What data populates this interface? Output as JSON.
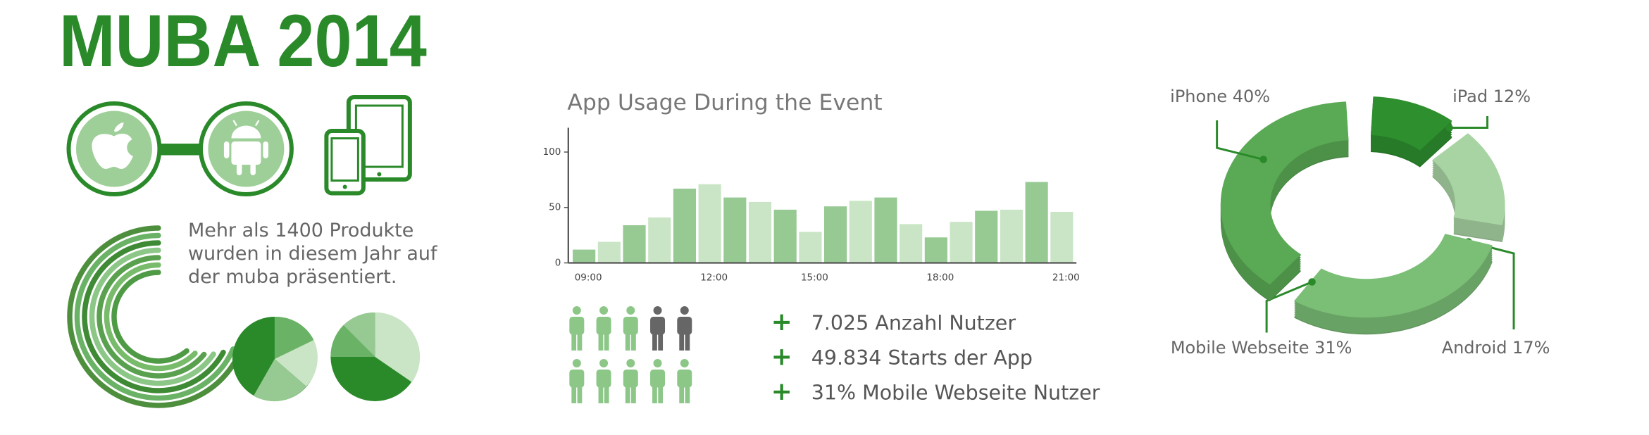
{
  "header": {
    "title": "MUBA 2014"
  },
  "intro": {
    "lines": [
      "Mehr als 1400 Produkte",
      "wurden in diesem Jahr auf",
      "der muba präsentiert."
    ]
  },
  "stats": [
    {
      "icon": "+",
      "text": "7.025 Anzahl Nutzer"
    },
    {
      "icon": "+",
      "text": "49.834 Starts der App"
    },
    {
      "icon": "+",
      "text": "31% Mobile Webseite Nutzer"
    }
  ],
  "chart_data": [
    {
      "type": "bar",
      "title": "App Usage During the Event",
      "categories": [
        "09:00",
        null,
        null,
        null,
        null,
        "12:00",
        null,
        null,
        null,
        "15:00",
        null,
        null,
        null,
        null,
        "18:00",
        null,
        null,
        null,
        null,
        "21:00"
      ],
      "values": [
        12,
        19,
        34,
        41,
        67,
        71,
        59,
        55,
        48,
        28,
        51,
        56,
        59,
        35,
        23,
        37,
        47,
        48,
        73,
        46
      ],
      "colors": [
        "#97c993",
        "#c9e5c5"
      ],
      "ylim": [
        0,
        120
      ],
      "yticks": [
        0,
        50,
        100
      ]
    },
    {
      "type": "donut",
      "values": [
        12,
        17,
        31,
        40
      ],
      "value_labels": [
        "iPad 12%",
        "Android 17%",
        "Mobile Webseite 31%",
        "iPhone 40%"
      ],
      "colors": [
        "#2e8f2e",
        "#a8d4a3",
        "#7bbf77",
        "#5aaa55"
      ]
    }
  ]
}
